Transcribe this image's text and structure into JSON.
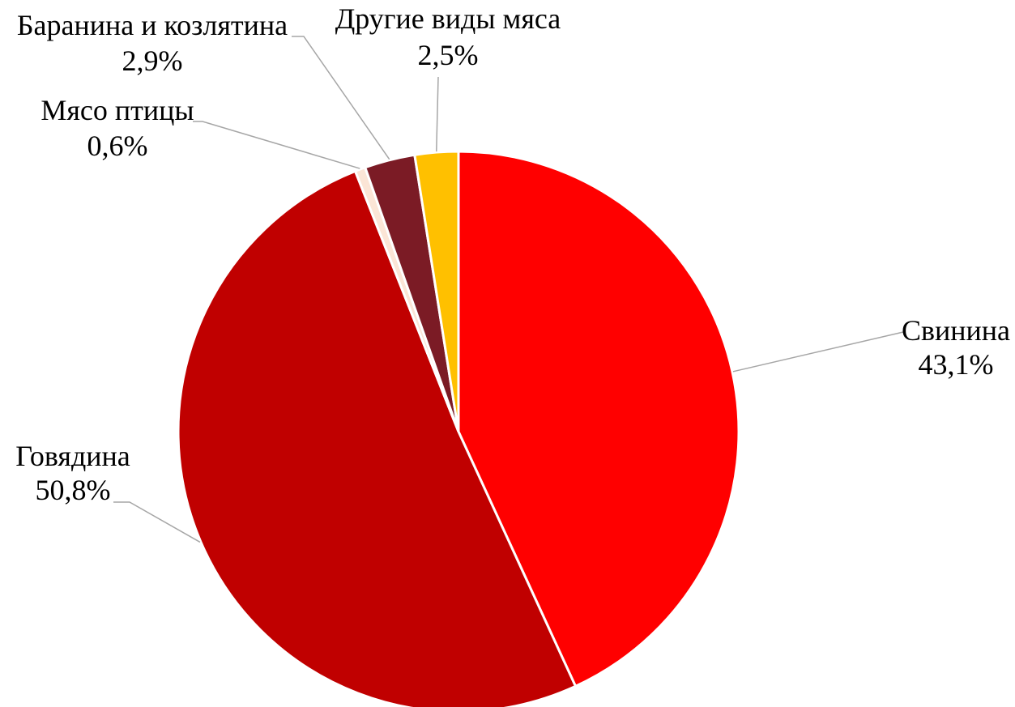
{
  "chart_data": {
    "type": "pie",
    "title": "",
    "start_angle_deg": 0,
    "direction": "clockwise",
    "slices": [
      {
        "name": "Свинина",
        "value": 43.1,
        "label": "43,1%",
        "color": "#ff0000"
      },
      {
        "name": "Говядина",
        "value": 50.8,
        "label": "50,8%",
        "color": "#c00000"
      },
      {
        "name": "Мясо птицы",
        "value": 0.6,
        "label": "0,6%",
        "color": "#fbe5d6"
      },
      {
        "name": "Баранина и козлятина",
        "value": 2.9,
        "label": "2,9%",
        "color": "#7b1b25"
      },
      {
        "name": "Другие виды мяса",
        "value": 2.5,
        "label": "2,5%",
        "color": "#ffc000"
      }
    ]
  }
}
